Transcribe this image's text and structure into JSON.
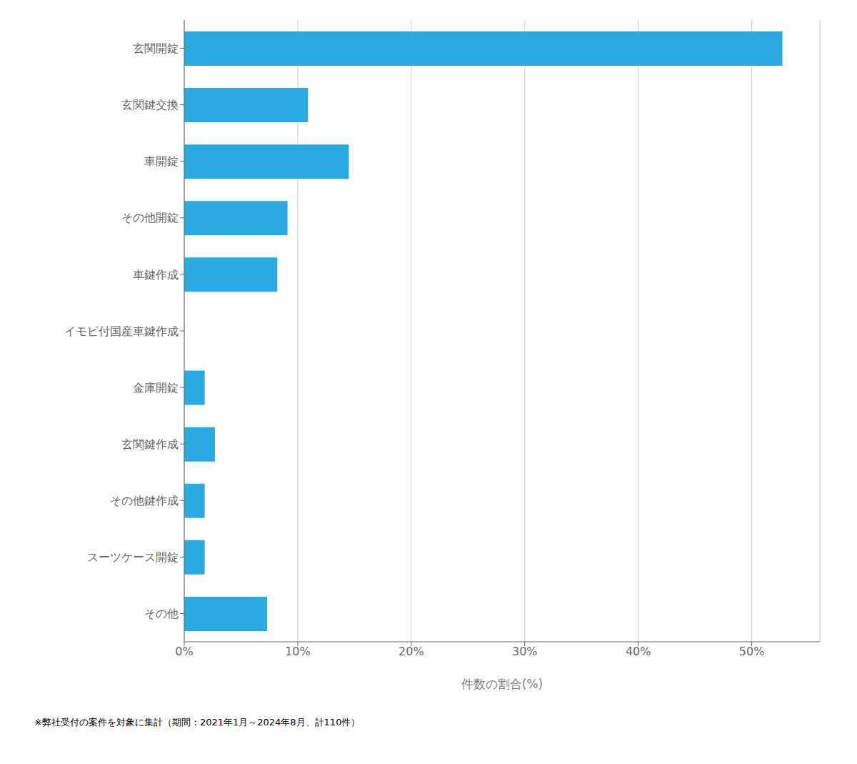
{
  "chart_data": {
    "type": "bar",
    "orientation": "horizontal",
    "categories": [
      "玄関開錠",
      "玄関鍵交換",
      "車開錠",
      "その他開錠",
      "車鍵作成",
      "イモビ付国産車鍵作成",
      "金庫開錠",
      "玄関鍵作成",
      "その他鍵作成",
      "スーツケース開錠",
      "その他"
    ],
    "values": [
      52.7,
      10.9,
      14.5,
      9.1,
      8.2,
      0.0,
      1.8,
      2.7,
      1.8,
      1.8,
      7.3
    ],
    "color": "#29ABE2",
    "xlabel": "件数の割合(%)",
    "xlim": [
      0,
      56
    ],
    "xticks": [
      {
        "value": 0,
        "label": "0%"
      },
      {
        "value": 10,
        "label": "10%"
      },
      {
        "value": 20,
        "label": "20%"
      },
      {
        "value": 30,
        "label": "30%"
      },
      {
        "value": 40,
        "label": "40%"
      },
      {
        "value": 50,
        "label": "50%"
      }
    ],
    "grid": true,
    "annotations": [
      "※弊社受付の案件を対象に集計（期間：2021年1月～2024年8月、計110件）"
    ]
  }
}
